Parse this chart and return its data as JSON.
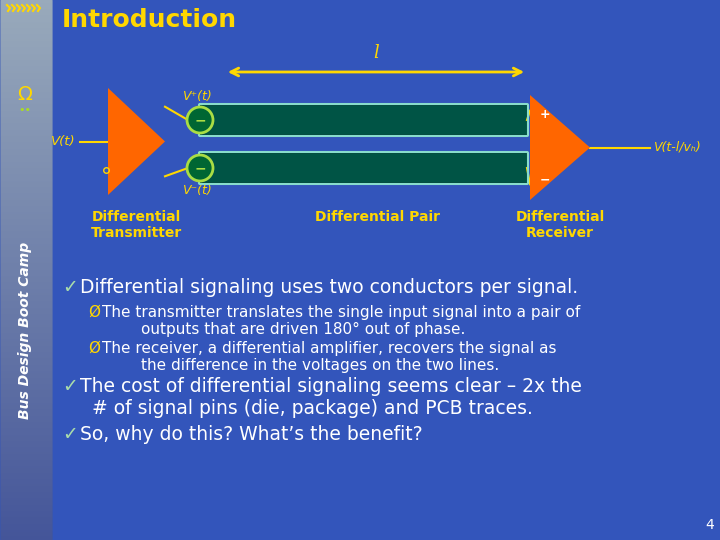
{
  "title": "Introduction",
  "title_color": "#FFD700",
  "title_fontsize": 18,
  "bg_color": "#3355BB",
  "slide_number": "4",
  "diagram": {
    "arrow_color": "#FFD700",
    "label_l": "l",
    "label_Vt": "V(t)",
    "label_V1t": "V⁺(t)",
    "label_V2t": "V⁻(t)",
    "label_Vout": "V(t-l/vₕ)",
    "label_diff_pair": "Differential Pair",
    "label_diff_tx": "Differential\nTransmitter",
    "label_diff_rx": "Differential\nReceiver",
    "triangle_color": "#FF6600",
    "tube_color": "#005540",
    "tube_highlight": "#007755",
    "tube_outline": "#88DDCC",
    "circle_color": "#006633",
    "circle_outline": "#AADD44",
    "label_color": "#FFD700"
  },
  "bullets": [
    {
      "symbol": "✓",
      "text": "Differential signaling uses two conductors per signal.",
      "level": 0,
      "fontsize": 13.5
    },
    {
      "symbol": "Ø",
      "text": "The transmitter translates the single input signal into a pair of\n        outputs that are driven 180° out of phase.",
      "level": 1,
      "fontsize": 11
    },
    {
      "symbol": "Ø",
      "text": "The receiver, a differential amplifier, recovers the signal as\n        the difference in the voltages on the two lines.",
      "level": 1,
      "fontsize": 11
    },
    {
      "symbol": "✓",
      "text": "The cost of differential signaling seems clear – 2x the\n  # of signal pins (die, package) and PCB traces.",
      "level": 0,
      "fontsize": 13.5
    },
    {
      "symbol": "✓",
      "text": "So, why do this? What’s the benefit?",
      "level": 0,
      "fontsize": 13.5
    }
  ],
  "side_label": "Bus Design Boot Camp",
  "side_bg_top": "#9AAABB",
  "side_bg_bot": "#5566AA"
}
